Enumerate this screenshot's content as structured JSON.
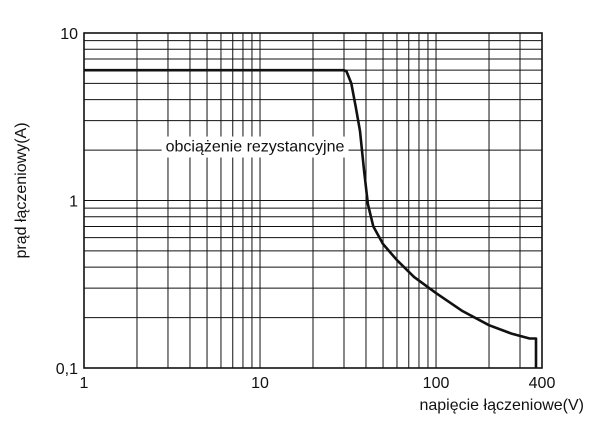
{
  "chart_data": {
    "type": "line",
    "title": "",
    "xlabel": "napięcie łączeniowe(V)",
    "ylabel": "prąd łączeniowy(A)",
    "x_scale": "log",
    "y_scale": "log",
    "xlim": [
      1,
      400
    ],
    "ylim": [
      0.1,
      10
    ],
    "x_ticks": [
      {
        "value": 1,
        "label": "1"
      },
      {
        "value": 10,
        "label": "10"
      },
      {
        "value": 100,
        "label": "100"
      },
      {
        "value": 400,
        "label": "400"
      }
    ],
    "y_ticks": [
      {
        "value": 10,
        "label": "10"
      },
      {
        "value": 1,
        "label": "1"
      },
      {
        "value": 0.1,
        "label": "0,1"
      }
    ],
    "grid": true,
    "series": [
      {
        "points": [
          [
            1,
            6
          ],
          [
            30,
            6
          ],
          [
            31,
            5.9
          ],
          [
            33,
            5.0
          ],
          [
            35,
            3.6
          ],
          [
            37,
            2.6
          ],
          [
            39,
            1.5
          ],
          [
            41,
            0.95
          ],
          [
            44,
            0.7
          ],
          [
            50,
            0.55
          ],
          [
            60,
            0.44
          ],
          [
            75,
            0.35
          ],
          [
            100,
            0.28
          ],
          [
            140,
            0.22
          ],
          [
            200,
            0.18
          ],
          [
            270,
            0.16
          ],
          [
            340,
            0.15
          ],
          [
            370,
            0.15
          ],
          [
            370,
            0.1
          ]
        ],
        "color": "#111111"
      }
    ],
    "annotations": [
      {
        "text": "obciążenie rezystancyjne",
        "x": 10,
        "y": 2.1
      }
    ]
  }
}
